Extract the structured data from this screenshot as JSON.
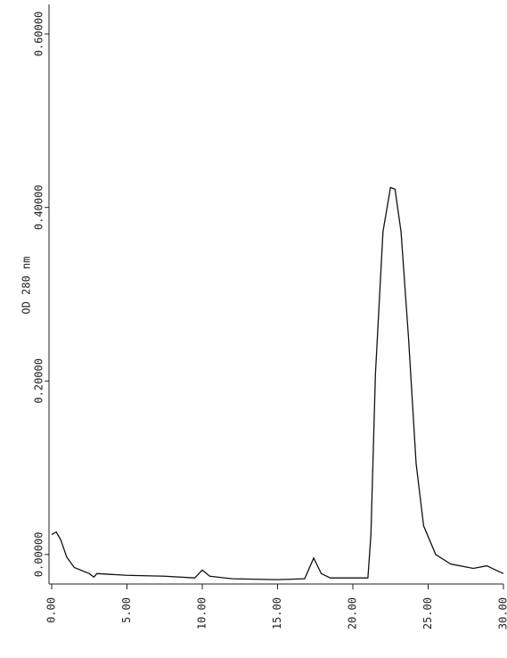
{
  "chart_data": {
    "type": "line",
    "ylabel": "OD 280 nm",
    "x": [
      0,
      0.3,
      0.6,
      1,
      1.5,
      2.5,
      2.8,
      3,
      5,
      7.5,
      9.5,
      10,
      10.5,
      12,
      15,
      16.8,
      17.4,
      17.9,
      18.5,
      21,
      21.2,
      21.5,
      22,
      22.5,
      22.8,
      23.2,
      23.7,
      24.2,
      24.7,
      25.5,
      26.5,
      28,
      28.9,
      29.5,
      30
    ],
    "series": [
      {
        "name": "OD 280 nm",
        "color": "#111111",
        "values": [
          0.023,
          0.026,
          0.017,
          -0.003,
          -0.015,
          -0.022,
          -0.026,
          -0.022,
          -0.024,
          -0.025,
          -0.027,
          -0.018,
          -0.025,
          -0.028,
          -0.029,
          -0.028,
          -0.004,
          -0.022,
          -0.027,
          -0.027,
          0.023,
          0.208,
          0.372,
          0.423,
          0.421,
          0.372,
          0.249,
          0.105,
          0.033,
          0,
          -0.011,
          -0.016,
          -0.013,
          -0.018,
          -0.022
        ]
      }
    ],
    "xlim": [
      0,
      30
    ],
    "ylim": [
      -0.034,
      0.634
    ],
    "xticks": [
      {
        "value": 0,
        "label": "0.00"
      },
      {
        "value": 5,
        "label": "5.00"
      },
      {
        "value": 10,
        "label": "10.00"
      },
      {
        "value": 15,
        "label": "15.00"
      },
      {
        "value": 20,
        "label": "20.00"
      },
      {
        "value": 25,
        "label": "25.00"
      },
      {
        "value": 30,
        "label": "30.00"
      }
    ],
    "yticks": [
      {
        "value": 0,
        "label": "0.00000"
      },
      {
        "value": 0.2,
        "label": "0.20000"
      },
      {
        "value": 0.4,
        "label": "0.40000"
      },
      {
        "value": 0.6,
        "label": "0.60000"
      }
    ]
  }
}
